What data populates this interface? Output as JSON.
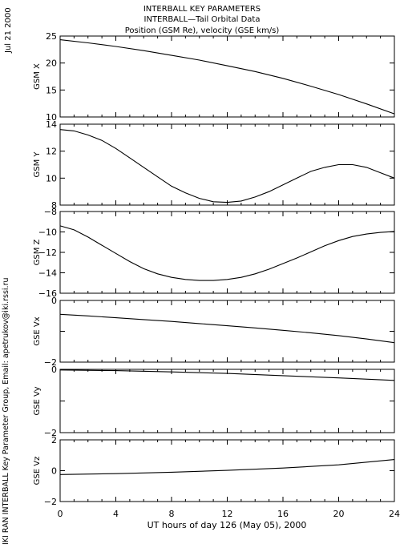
{
  "header": {
    "title1": "INTERBALL KEY PARAMETERS",
    "title2": "INTERBALL—Tail Orbital Data",
    "title3": "Position (GSM Re), velocity (GSE km/s)"
  },
  "side_date": "Jul 21 2000",
  "side_credit": "IKI RAN INTERBALL Key Parameter Group, Email: apetrukov@iki.rssi.ru",
  "xaxis": {
    "label": "UT hours of day 126 (May 05), 2000",
    "ticks": [
      "0",
      "4",
      "8",
      "12",
      "16",
      "20",
      "24"
    ]
  },
  "chart_data": [
    {
      "type": "line",
      "ylabel": "GSM X",
      "xlim": [
        0,
        24
      ],
      "ylim": [
        10,
        25.5
      ],
      "yticks": [
        "25",
        "20",
        "15",
        "10"
      ],
      "x": [
        0,
        2,
        4,
        6,
        8,
        10,
        12,
        14,
        16,
        18,
        20,
        22,
        24
      ],
      "series": [
        {
          "values": [
            24.8,
            24.2,
            23.5,
            22.7,
            21.8,
            20.9,
            19.8,
            18.7,
            17.4,
            15.9,
            14.3,
            12.5,
            10.6
          ]
        }
      ]
    },
    {
      "type": "line",
      "ylabel": "GSM Y",
      "xlim": [
        0,
        24
      ],
      "ylim": [
        8,
        14
      ],
      "yticks": [
        "14",
        "12",
        "10",
        "8"
      ],
      "x": [
        0,
        1,
        2,
        3,
        4,
        5,
        6,
        7,
        8,
        9,
        10,
        11,
        12,
        13,
        14,
        15,
        16,
        17,
        18,
        19,
        20,
        21,
        22,
        23,
        24
      ],
      "series": [
        {
          "values": [
            13.6,
            13.5,
            13.2,
            12.8,
            12.2,
            11.5,
            10.8,
            10.1,
            9.4,
            8.9,
            8.5,
            8.25,
            8.2,
            8.3,
            8.6,
            9.0,
            9.5,
            10.0,
            10.5,
            10.8,
            11.0,
            11.0,
            10.8,
            10.4,
            10.0
          ]
        }
      ]
    },
    {
      "type": "line",
      "ylabel": "GSM Z",
      "xlim": [
        0,
        24
      ],
      "ylim": [
        -16,
        -8
      ],
      "yticks": [
        "−8",
        "−10",
        "−12",
        "−14",
        "−16"
      ],
      "x": [
        0,
        1,
        2,
        3,
        4,
        5,
        6,
        7,
        8,
        9,
        10,
        11,
        12,
        13,
        14,
        15,
        16,
        17,
        18,
        19,
        20,
        21,
        22,
        23,
        24
      ],
      "series": [
        {
          "values": [
            -9.4,
            -9.8,
            -10.5,
            -11.3,
            -12.1,
            -12.9,
            -13.6,
            -14.1,
            -14.45,
            -14.65,
            -14.75,
            -14.75,
            -14.65,
            -14.45,
            -14.1,
            -13.65,
            -13.1,
            -12.55,
            -11.95,
            -11.35,
            -10.85,
            -10.45,
            -10.2,
            -10.05,
            -9.95
          ]
        }
      ]
    },
    {
      "type": "line",
      "ylabel": "GSE Vx",
      "xlim": [
        0,
        24
      ],
      "ylim": [
        -2,
        0
      ],
      "yticks": [
        "0",
        "",
        "−2"
      ],
      "x": [
        0,
        2,
        4,
        6,
        8,
        10,
        12,
        14,
        16,
        18,
        20,
        22,
        24
      ],
      "series": [
        {
          "values": [
            -0.45,
            -0.5,
            -0.56,
            -0.62,
            -0.68,
            -0.75,
            -0.82,
            -0.89,
            -0.97,
            -1.05,
            -1.14,
            -1.25,
            -1.37
          ]
        }
      ]
    },
    {
      "type": "line",
      "ylabel": "GSE Vy",
      "xlim": [
        0,
        24
      ],
      "ylim": [
        -2,
        0
      ],
      "yticks": [
        "0",
        "",
        "−2"
      ],
      "x": [
        0,
        4,
        8,
        12,
        16,
        20,
        24
      ],
      "series": [
        {
          "values": [
            -0.02,
            -0.04,
            -0.08,
            -0.13,
            -0.2,
            -0.27,
            -0.35
          ]
        }
      ]
    },
    {
      "type": "line",
      "ylabel": "GSE Vz",
      "xlim": [
        0,
        24
      ],
      "ylim": [
        -2,
        2
      ],
      "yticks": [
        "2",
        "0",
        "−2"
      ],
      "x": [
        0,
        4,
        8,
        12,
        16,
        20,
        24
      ],
      "series": [
        {
          "values": [
            -0.25,
            -0.19,
            -0.1,
            0.02,
            0.17,
            0.38,
            0.72
          ]
        }
      ]
    }
  ]
}
